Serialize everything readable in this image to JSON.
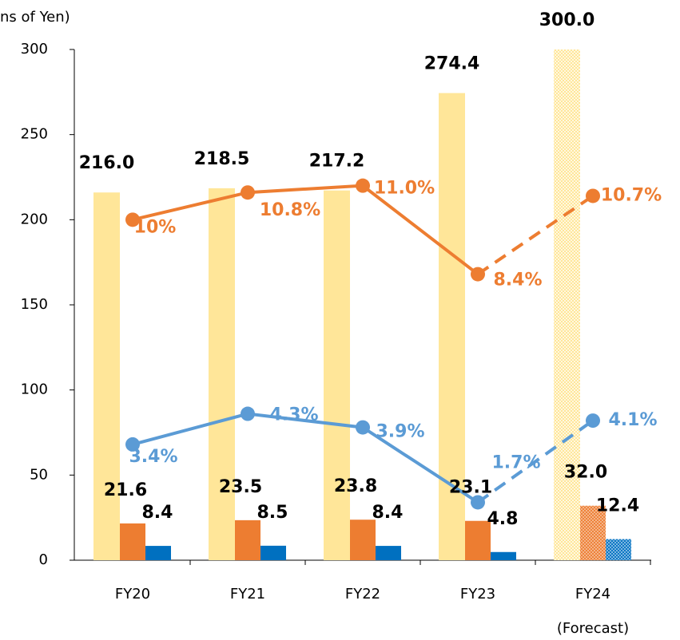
{
  "chart_data": {
    "type": "bar",
    "y_axis_label": "ns of Yen)",
    "annotation": "(Forecast)",
    "categories": [
      "FY20",
      "FY21",
      "FY22",
      "FY23",
      "FY24"
    ],
    "forecast_categories": [
      "FY24"
    ],
    "ylim": [
      0,
      300
    ],
    "yticks": [
      0,
      50,
      100,
      150,
      200,
      250,
      300
    ],
    "y2lim": [
      0,
      15
    ],
    "series": [
      {
        "color": "#ffe699",
        "values": [
          216.0,
          218.5,
          217.2,
          274.4,
          300.0
        ],
        "value_labels": [
          "216.0",
          "218.5",
          "217.2",
          "274.4",
          "300.0"
        ]
      },
      {
        "color": "#ed7d31",
        "values": [
          21.6,
          23.5,
          23.8,
          23.1,
          32.0
        ],
        "value_labels": [
          "21.6",
          "23.5",
          "23.8",
          "23.1",
          "32.0"
        ]
      },
      {
        "color": "#0070c0",
        "values": [
          8.4,
          8.5,
          8.4,
          4.8,
          12.4
        ]
      },
      {
        "type": "line",
        "axis": "y2",
        "color": "#ed7d31",
        "values": [
          10,
          10.8,
          11.0,
          8.4,
          10.7
        ],
        "value_labels": [
          "10%",
          "10.8%",
          "11.0%",
          "8.4%",
          "10.7%"
        ]
      },
      {
        "type": "line",
        "axis": "y2",
        "color": "#5b9bd5",
        "values": [
          3.4,
          4.3,
          3.9,
          1.7,
          4.1
        ],
        "value_labels": [
          "3.4%",
          "4.3%",
          "3.9%",
          "1.7%",
          "4.1%"
        ]
      }
    ]
  }
}
